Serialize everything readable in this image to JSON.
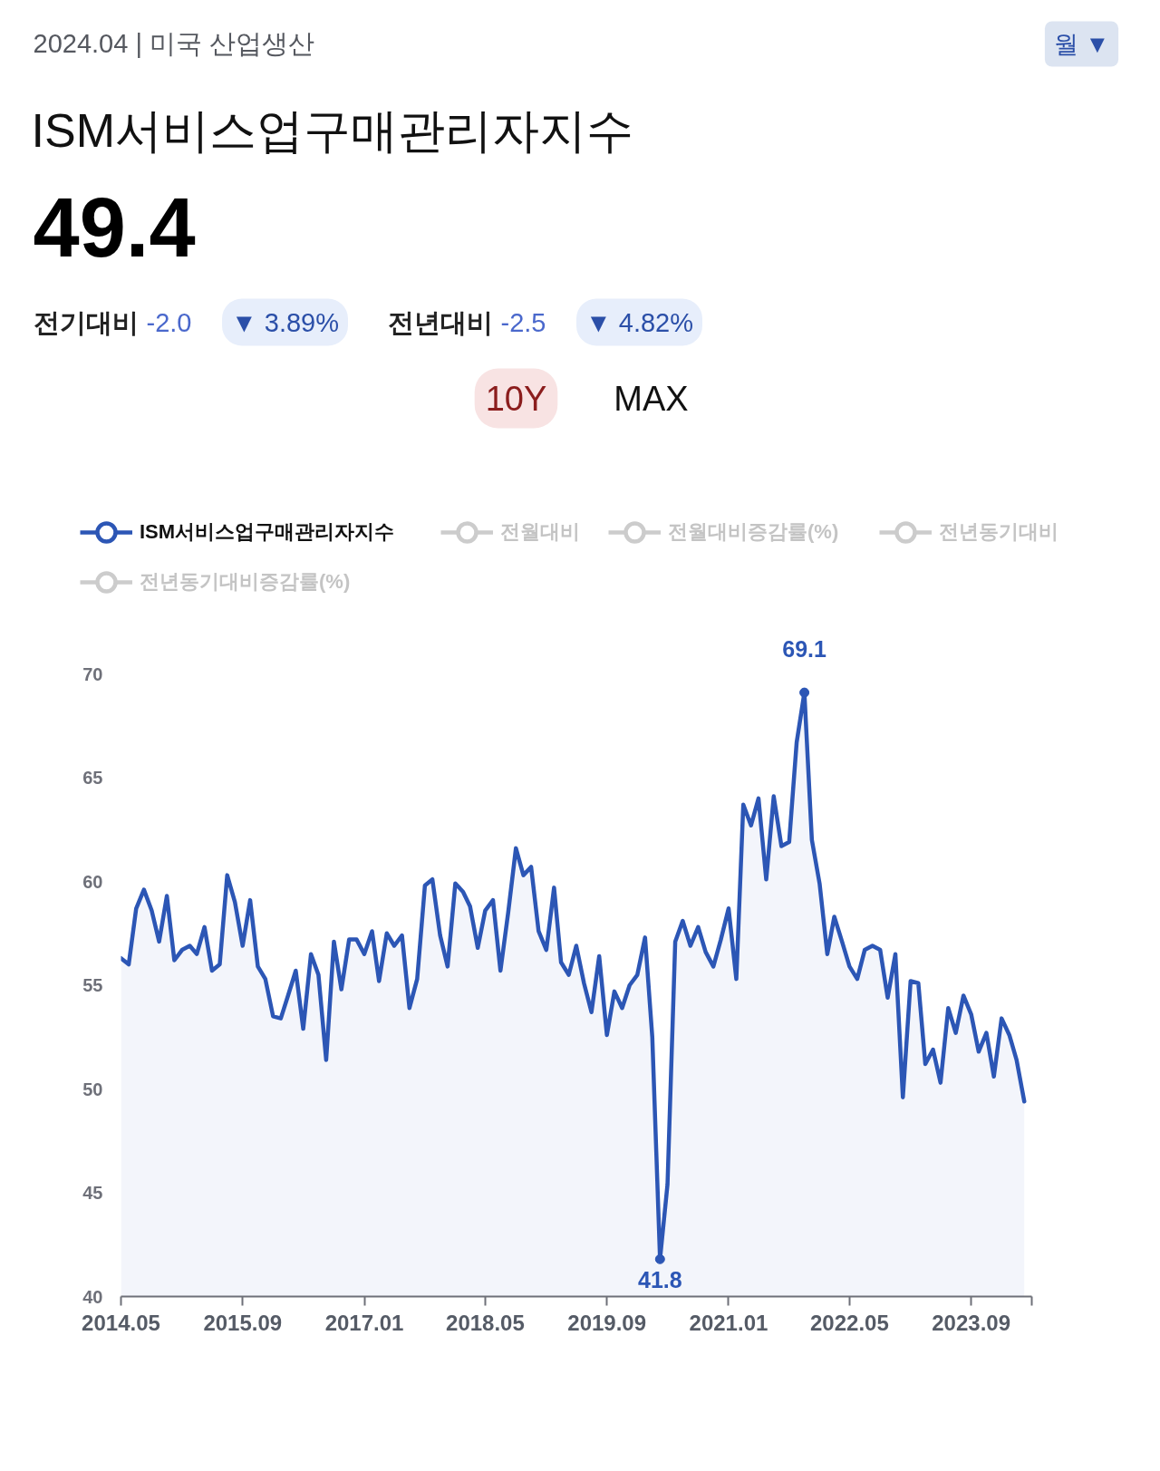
{
  "chart_data": {
    "type": "area",
    "title": "ISM서비스업구매관리자지수",
    "subtitle": "2024.04 | 미국 산업생산",
    "x": [
      "2014-05",
      "2014-06",
      "2014-07",
      "2014-08",
      "2014-09",
      "2014-10",
      "2014-11",
      "2014-12",
      "2015-01",
      "2015-02",
      "2015-03",
      "2015-04",
      "2015-05",
      "2015-06",
      "2015-07",
      "2015-08",
      "2015-09",
      "2015-10",
      "2015-11",
      "2015-12",
      "2016-01",
      "2016-02",
      "2016-03",
      "2016-04",
      "2016-05",
      "2016-06",
      "2016-07",
      "2016-08",
      "2016-09",
      "2016-10",
      "2016-11",
      "2016-12",
      "2017-01",
      "2017-02",
      "2017-03",
      "2017-04",
      "2017-05",
      "2017-06",
      "2017-07",
      "2017-08",
      "2017-09",
      "2017-10",
      "2017-11",
      "2017-12",
      "2018-01",
      "2018-02",
      "2018-03",
      "2018-04",
      "2018-05",
      "2018-06",
      "2018-07",
      "2018-08",
      "2018-09",
      "2018-10",
      "2018-11",
      "2018-12",
      "2019-01",
      "2019-02",
      "2019-03",
      "2019-04",
      "2019-05",
      "2019-06",
      "2019-07",
      "2019-08",
      "2019-09",
      "2019-10",
      "2019-11",
      "2019-12",
      "2020-01",
      "2020-02",
      "2020-03",
      "2020-04",
      "2020-05",
      "2020-06",
      "2020-07",
      "2020-08",
      "2020-09",
      "2020-10",
      "2020-11",
      "2020-12",
      "2021-01",
      "2021-02",
      "2021-03",
      "2021-04",
      "2021-05",
      "2021-06",
      "2021-07",
      "2021-08",
      "2021-09",
      "2021-10",
      "2021-11",
      "2021-12",
      "2022-01",
      "2022-02",
      "2022-03",
      "2022-04",
      "2022-05",
      "2022-06",
      "2022-07",
      "2022-08",
      "2022-09",
      "2022-10",
      "2022-11",
      "2022-12",
      "2023-01",
      "2023-02",
      "2023-03",
      "2023-04",
      "2023-05",
      "2023-06",
      "2023-07",
      "2023-08",
      "2023-09",
      "2023-10",
      "2023-11",
      "2023-12",
      "2024-01",
      "2024-02",
      "2024-03",
      "2024-04"
    ],
    "series": [
      {
        "name": "ISM서비스업구매관리자지수",
        "color": "#2c56b5",
        "values": [
          56.3,
          56.0,
          58.7,
          59.6,
          58.6,
          57.1,
          59.3,
          56.2,
          56.7,
          56.9,
          56.5,
          57.8,
          55.7,
          56.0,
          60.3,
          59.0,
          56.9,
          59.1,
          55.9,
          55.3,
          53.5,
          53.4,
          54.5,
          55.7,
          52.9,
          56.5,
          55.5,
          51.4,
          57.1,
          54.8,
          57.2,
          57.2,
          56.5,
          57.6,
          55.2,
          57.5,
          56.9,
          57.4,
          53.9,
          55.3,
          59.8,
          60.1,
          57.4,
          55.9,
          59.9,
          59.5,
          58.8,
          56.8,
          58.6,
          59.1,
          55.7,
          58.5,
          61.6,
          60.3,
          60.7,
          57.6,
          56.7,
          59.7,
          56.1,
          55.5,
          56.9,
          55.1,
          53.7,
          56.4,
          52.6,
          54.7,
          53.9,
          55.0,
          55.5,
          57.3,
          52.5,
          41.8,
          45.4,
          57.1,
          58.1,
          56.9,
          57.8,
          56.6,
          55.9,
          57.2,
          58.7,
          55.3,
          63.7,
          62.7,
          64.0,
          60.1,
          64.1,
          61.7,
          61.9,
          66.7,
          69.1,
          62.0,
          59.9,
          56.5,
          58.3,
          57.1,
          55.9,
          55.3,
          56.7,
          56.9,
          56.7,
          54.4,
          56.5,
          49.6,
          55.2,
          55.1,
          51.2,
          51.9,
          50.3,
          53.9,
          52.7,
          54.5,
          53.6,
          51.8,
          52.7,
          50.6,
          53.4,
          52.6,
          51.4,
          49.4
        ]
      },
      {
        "name": "전월대비",
        "color": "#cccccc",
        "values": [
          null,
          null,
          null,
          null,
          null,
          null,
          null,
          null,
          null,
          null,
          null,
          null,
          null,
          null,
          null,
          null,
          null,
          null,
          null,
          null,
          null,
          null,
          null,
          null,
          null,
          null,
          null,
          null,
          null,
          null,
          null,
          null,
          null,
          null,
          null,
          null,
          null,
          null,
          null,
          null,
          null,
          null,
          null,
          null,
          null,
          null,
          null,
          null,
          null,
          null,
          null,
          null,
          null,
          null,
          null,
          null,
          null,
          null,
          null,
          null,
          null,
          null,
          null,
          null,
          null,
          null,
          null,
          null,
          null,
          null,
          null,
          null,
          null,
          null,
          null,
          null,
          null,
          null,
          null,
          null,
          null,
          null,
          null,
          null,
          null,
          null,
          null,
          null,
          null,
          null,
          null,
          null,
          null,
          null,
          null,
          null,
          null,
          null,
          null,
          null,
          null,
          null,
          null,
          null,
          null,
          null,
          null,
          null,
          null,
          null,
          null,
          null,
          null,
          null,
          null,
          null,
          null,
          null,
          null,
          null
        ]
      },
      {
        "name": "전월대비증감률(%)",
        "color": "#cccccc",
        "values": [
          null,
          null,
          null,
          null,
          null,
          null,
          null,
          null,
          null,
          null,
          null,
          null,
          null,
          null,
          null,
          null,
          null,
          null,
          null,
          null,
          null,
          null,
          null,
          null,
          null,
          null,
          null,
          null,
          null,
          null,
          null,
          null,
          null,
          null,
          null,
          null,
          null,
          null,
          null,
          null,
          null,
          null,
          null,
          null,
          null,
          null,
          null,
          null,
          null,
          null,
          null,
          null,
          null,
          null,
          null,
          null,
          null,
          null,
          null,
          null,
          null,
          null,
          null,
          null,
          null,
          null,
          null,
          null,
          null,
          null,
          null,
          null,
          null,
          null,
          null,
          null,
          null,
          null,
          null,
          null,
          null,
          null,
          null,
          null,
          null,
          null,
          null,
          null,
          null,
          null,
          null,
          null,
          null,
          null,
          null,
          null,
          null,
          null,
          null,
          null,
          null,
          null,
          null,
          null,
          null,
          null,
          null,
          null,
          null,
          null,
          null,
          null,
          null,
          null,
          null,
          null,
          null,
          null,
          null,
          null
        ]
      },
      {
        "name": "전년동기대비",
        "color": "#cccccc",
        "values": [
          null,
          null,
          null,
          null,
          null,
          null,
          null,
          null,
          null,
          null,
          null,
          null,
          null,
          null,
          null,
          null,
          null,
          null,
          null,
          null,
          null,
          null,
          null,
          null,
          null,
          null,
          null,
          null,
          null,
          null,
          null,
          null,
          null,
          null,
          null,
          null,
          null,
          null,
          null,
          null,
          null,
          null,
          null,
          null,
          null,
          null,
          null,
          null,
          null,
          null,
          null,
          null,
          null,
          null,
          null,
          null,
          null,
          null,
          null,
          null,
          null,
          null,
          null,
          null,
          null,
          null,
          null,
          null,
          null,
          null,
          null,
          null,
          null,
          null,
          null,
          null,
          null,
          null,
          null,
          null,
          null,
          null,
          null,
          null,
          null,
          null,
          null,
          null,
          null,
          null,
          null,
          null,
          null,
          null,
          null,
          null,
          null,
          null,
          null,
          null,
          null,
          null,
          null,
          null,
          null,
          null,
          null,
          null,
          null,
          null,
          null,
          null,
          null,
          null,
          null,
          null,
          null,
          null,
          null,
          null
        ]
      },
      {
        "name": "전년동기대비증감률(%)",
        "color": "#cccccc",
        "values": [
          null,
          null,
          null,
          null,
          null,
          null,
          null,
          null,
          null,
          null,
          null,
          null,
          null,
          null,
          null,
          null,
          null,
          null,
          null,
          null,
          null,
          null,
          null,
          null,
          null,
          null,
          null,
          null,
          null,
          null,
          null,
          null,
          null,
          null,
          null,
          null,
          null,
          null,
          null,
          null,
          null,
          null,
          null,
          null,
          null,
          null,
          null,
          null,
          null,
          null,
          null,
          null,
          null,
          null,
          null,
          null,
          null,
          null,
          null,
          null,
          null,
          null,
          null,
          null,
          null,
          null,
          null,
          null,
          null,
          null,
          null,
          null,
          null,
          null,
          null,
          null,
          null,
          null,
          null,
          null,
          null,
          null,
          null,
          null,
          null,
          null,
          null,
          null,
          null,
          null,
          null,
          null,
          null,
          null,
          null,
          null,
          null,
          null,
          null,
          null,
          null,
          null,
          null,
          null,
          null,
          null,
          null,
          null,
          null,
          null,
          null,
          null,
          null,
          null,
          null,
          null,
          null,
          null,
          null,
          null
        ]
      }
    ],
    "xlim": [
      "2014-05",
      "2024-05"
    ],
    "xticks": [
      {
        "value": "2014-05",
        "label": "2014.05"
      },
      {
        "value": "2015-09",
        "label": "2015.09"
      },
      {
        "value": "2017-01",
        "label": "2017.01"
      },
      {
        "value": "2018-05",
        "label": "2018.05"
      },
      {
        "value": "2019-09",
        "label": "2019.09"
      },
      {
        "value": "2021-01",
        "label": "2021.01"
      },
      {
        "value": "2022-05",
        "label": "2022.05"
      },
      {
        "value": "2023-09",
        "label": "2023.09"
      },
      {
        "value": "2024-05",
        "label": null
      }
    ],
    "ylim": [
      40,
      70
    ],
    "yticks": [
      40,
      45,
      50,
      55,
      60,
      65,
      70
    ],
    "legend": "top left",
    "annotations": [
      "49.4",
      "전기대비",
      "-2.0",
      "▼ 3.89%",
      "전년대비",
      "-2.5",
      "▼ 4.82%",
      "10Y",
      "MAX",
      "월 ▼",
      {
        "text": "69.1",
        "x": "2021-11",
        "y": 69.1
      },
      {
        "text": "41.8",
        "x": "2020-04",
        "y": 41.8
      }
    ]
  }
}
